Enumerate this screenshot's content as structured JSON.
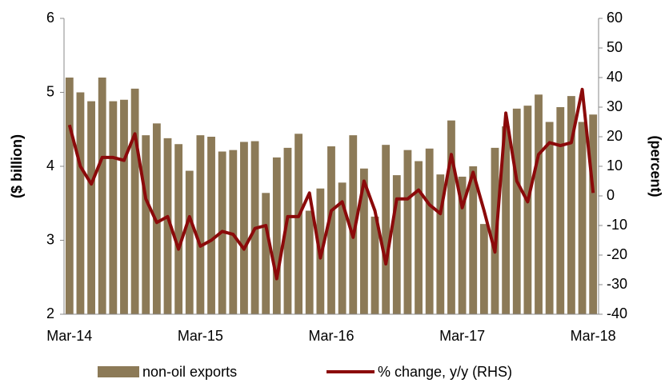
{
  "chart_data": {
    "type": "bar-line",
    "categories": [
      "Mar-14",
      null,
      null,
      null,
      null,
      null,
      null,
      null,
      null,
      null,
      null,
      null,
      "Mar-15",
      null,
      null,
      null,
      null,
      null,
      null,
      null,
      null,
      null,
      null,
      null,
      "Mar-16",
      null,
      null,
      null,
      null,
      null,
      null,
      null,
      null,
      null,
      null,
      null,
      "Mar-17",
      null,
      null,
      null,
      null,
      null,
      null,
      null,
      null,
      null,
      null,
      null,
      "Mar-18"
    ],
    "series": [
      {
        "name": "non-oil exports",
        "color": "#8c7a57",
        "kind": "bar",
        "values": [
          5.2,
          5.0,
          4.88,
          5.2,
          4.88,
          4.9,
          5.05,
          4.42,
          4.58,
          4.38,
          4.3,
          3.94,
          4.42,
          4.4,
          4.2,
          4.22,
          4.33,
          4.34,
          3.64,
          4.12,
          4.25,
          4.44,
          3.4,
          3.7,
          4.27,
          3.78,
          4.42,
          3.97,
          3.32,
          4.29,
          3.88,
          4.22,
          4.07,
          4.24,
          3.89,
          4.62,
          3.86,
          4.0,
          3.22,
          4.25,
          4.54,
          4.78,
          4.82,
          4.97,
          4.6,
          4.8,
          4.95,
          4.6,
          4.7
        ]
      },
      {
        "name": "% change, y/y (RHS)",
        "color": "#8b0a0a",
        "kind": "line",
        "axis": "y2",
        "values": [
          24,
          10,
          4,
          13,
          13,
          12,
          21,
          -1,
          -9,
          -7,
          -18,
          -7,
          -17,
          -15,
          -12,
          -13,
          -18,
          -11,
          -10,
          -28,
          -7,
          -7,
          1,
          -21,
          -5,
          -2,
          -14,
          5,
          -5,
          -23,
          -1,
          -1,
          2,
          -3,
          -6,
          14,
          -4,
          8,
          -5,
          -19,
          28,
          5,
          -2,
          14,
          18,
          17,
          18,
          36,
          1
        ]
      }
    ],
    "ylabel": "($ billion)",
    "y2label": "(percent)",
    "ylim": [
      2,
      6
    ],
    "yticks": [
      2,
      3,
      4,
      5,
      6
    ],
    "y2lim": [
      -40,
      60
    ],
    "y2ticks": [
      -40,
      -30,
      -20,
      -10,
      0,
      10,
      20,
      30,
      40,
      50,
      60
    ],
    "legend": "bottom"
  }
}
